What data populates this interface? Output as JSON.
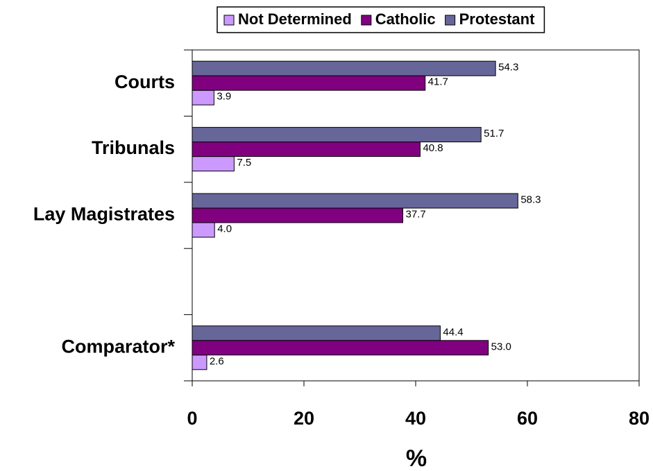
{
  "chart_data": {
    "type": "hbar",
    "x_label": "%",
    "categories": [
      "Courts",
      "Tribunals",
      "Lay Magistrates",
      null,
      "Comparator*"
    ],
    "series": [
      {
        "name": "Not Determined",
        "color": "#cc99ff",
        "values": [
          3.9,
          7.5,
          4.0,
          null,
          2.6
        ],
        "value_labels": [
          "3.9",
          "7.5",
          "4.0",
          null,
          "2.6"
        ]
      },
      {
        "name": "Catholic",
        "color": "#800080",
        "values": [
          41.7,
          40.8,
          37.7,
          null,
          53.0
        ],
        "value_labels": [
          "41.7",
          "40.8",
          "37.7",
          null,
          "53.0"
        ]
      },
      {
        "name": "Protestant",
        "color": "#666699",
        "values": [
          54.3,
          51.7,
          58.3,
          null,
          44.4
        ],
        "value_labels": [
          "54.3",
          "51.7",
          "58.3",
          null,
          "44.4"
        ]
      }
    ],
    "xlim": [
      0,
      80
    ],
    "xticks": [
      0,
      20,
      40,
      60,
      80
    ],
    "grid": false,
    "legend": "top"
  }
}
